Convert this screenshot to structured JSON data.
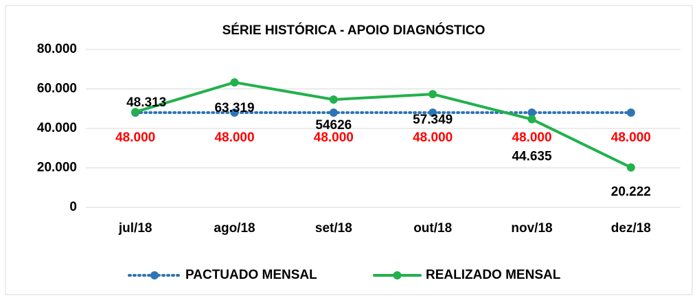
{
  "chart_data": {
    "type": "line",
    "title": "SÉRIE HISTÓRICA - APOIO DIAGNÓSTICO",
    "categories": [
      "jul/18",
      "ago/18",
      "set/18",
      "out/18",
      "nov/18",
      "dez/18"
    ],
    "series": [
      {
        "name": "PACTUADO MENSAL",
        "color": "#2e75b6",
        "values": [
          48000,
          48000,
          48000,
          48000,
          48000,
          48000
        ],
        "value_labels": [
          "48.000",
          "48.000",
          "48.000",
          "48.000",
          "48.000",
          "48.000"
        ],
        "label_color": "#ff0000"
      },
      {
        "name": "REALIZADO MENSAL",
        "color": "#22b14c",
        "values": [
          48313,
          63319,
          54626,
          57349,
          44635,
          20222
        ],
        "value_labels": [
          "48.313",
          "63.319",
          "54626",
          "57.349",
          "44.635",
          "20.222"
        ],
        "label_color": "#000000"
      }
    ],
    "ylim": [
      0,
      80000
    ],
    "yticks": [
      0,
      {
        "value": 20000,
        "label": "20.000"
      },
      {
        "value": 40000,
        "label": "40.000"
      },
      {
        "value": 60000,
        "label": "60.000"
      },
      {
        "value": 80000,
        "label": "80.000"
      }
    ],
    "grid": true,
    "legend": "bottom"
  }
}
